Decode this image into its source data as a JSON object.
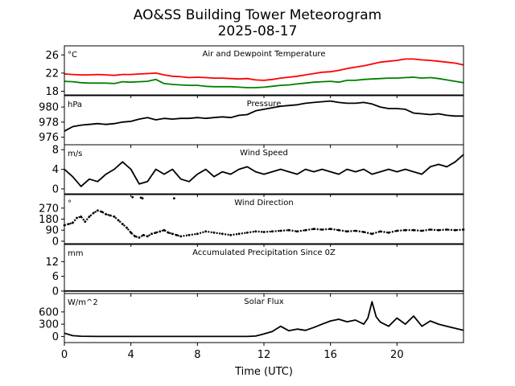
{
  "figure": {
    "title_line1": "AO&SS Building Tower Meteorogram",
    "title_line2": "2025-08-17",
    "xlabel": "Time (UTC)"
  },
  "chart_data": [
    {
      "type": "line",
      "title": "Air and Dewpoint Temperature",
      "unit": "°C",
      "ylim": [
        17.2,
        28
      ],
      "yticks": [
        18,
        22,
        26
      ],
      "series": [
        {
          "name": "Air Temperature",
          "color": "#ff0000",
          "x": [
            0,
            0.5,
            1,
            1.5,
            2,
            2.5,
            3,
            3.5,
            4,
            4.5,
            5,
            5.5,
            6,
            6.5,
            7,
            7.5,
            8,
            8.5,
            9,
            9.5,
            10,
            10.5,
            11,
            11.5,
            12,
            12.5,
            13,
            13.5,
            14,
            14.5,
            15,
            15.5,
            16,
            16.5,
            17,
            17.5,
            18,
            18.5,
            19,
            19.5,
            20,
            20.5,
            21,
            21.5,
            22,
            22.5,
            23,
            23.5,
            24
          ],
          "y": [
            21.8,
            21.7,
            21.6,
            21.6,
            21.7,
            21.6,
            21.5,
            21.7,
            21.7,
            21.8,
            21.9,
            22.0,
            21.6,
            21.3,
            21.2,
            21.0,
            21.1,
            21.0,
            20.9,
            20.9,
            20.8,
            20.7,
            20.8,
            20.5,
            20.4,
            20.6,
            20.9,
            21.1,
            21.3,
            21.6,
            21.9,
            22.2,
            22.3,
            22.6,
            23.0,
            23.3,
            23.6,
            24.0,
            24.4,
            24.6,
            24.8,
            25.1,
            25.1,
            24.9,
            24.8,
            24.6,
            24.4,
            24.2,
            23.8
          ]
        },
        {
          "name": "Dewpoint Temperature",
          "color": "#008000",
          "x": [
            0,
            0.5,
            1,
            1.5,
            2,
            2.5,
            3,
            3.5,
            4,
            4.5,
            5,
            5.5,
            6,
            6.5,
            7,
            7.5,
            8,
            8.5,
            9,
            9.5,
            10,
            10.5,
            11,
            11.5,
            12,
            12.5,
            13,
            13.5,
            14,
            14.5,
            15,
            15.5,
            16,
            16.5,
            17,
            17.5,
            18,
            18.5,
            19,
            19.5,
            20,
            20.5,
            21,
            21.5,
            22,
            22.5,
            23,
            23.5,
            24
          ],
          "y": [
            20.2,
            20.1,
            19.9,
            19.8,
            19.8,
            19.8,
            19.7,
            20.1,
            20.0,
            20.1,
            20.2,
            20.6,
            19.7,
            19.5,
            19.4,
            19.3,
            19.3,
            19.1,
            19.0,
            19.0,
            19.0,
            18.9,
            18.8,
            18.8,
            18.9,
            19.1,
            19.3,
            19.4,
            19.6,
            19.8,
            20.0,
            20.1,
            20.2,
            20.0,
            20.4,
            20.4,
            20.6,
            20.7,
            20.8,
            20.9,
            20.9,
            21.0,
            21.1,
            20.9,
            21.0,
            20.8,
            20.5,
            20.2,
            19.9
          ]
        }
      ]
    },
    {
      "type": "line",
      "title": "Pressure",
      "unit": "hPa",
      "ylim": [
        975,
        981.5
      ],
      "yticks": [
        976,
        978,
        980
      ],
      "series": [
        {
          "name": "Pressure",
          "color": "#000000",
          "x": [
            0,
            0.5,
            1,
            1.5,
            2,
            2.5,
            3,
            3.5,
            4,
            4.5,
            5,
            5.5,
            6,
            6.5,
            7,
            7.5,
            8,
            8.5,
            9,
            9.5,
            10,
            10.5,
            11,
            11.5,
            12,
            12.5,
            13,
            13.5,
            14,
            14.5,
            15,
            15.5,
            16,
            16.5,
            17,
            17.5,
            18,
            18.5,
            19,
            19.5,
            20,
            20.5,
            21,
            21.5,
            22,
            22.5,
            23,
            23.5,
            24
          ],
          "y": [
            976.8,
            977.4,
            977.6,
            977.7,
            977.8,
            977.7,
            977.8,
            978.0,
            978.1,
            978.4,
            978.6,
            978.3,
            978.5,
            978.4,
            978.5,
            978.5,
            978.6,
            978.5,
            978.6,
            978.7,
            978.6,
            978.9,
            979.0,
            979.5,
            979.7,
            979.9,
            980.1,
            980.2,
            980.3,
            980.5,
            980.6,
            980.7,
            980.8,
            980.6,
            980.5,
            980.5,
            980.6,
            980.4,
            980.0,
            979.8,
            979.8,
            979.7,
            979.2,
            979.1,
            979.0,
            979.1,
            978.9,
            978.8,
            978.8
          ]
        }
      ]
    },
    {
      "type": "line",
      "title": "Wind Speed",
      "unit": "m/s",
      "ylim": [
        -1,
        9
      ],
      "yticks": [
        0,
        4,
        8
      ],
      "series": [
        {
          "name": "Wind Speed",
          "color": "#000000",
          "x": [
            0,
            0.5,
            1,
            1.5,
            2,
            2.5,
            3,
            3.5,
            4,
            4.5,
            5,
            5.5,
            6,
            6.5,
            7,
            7.5,
            8,
            8.5,
            9,
            9.5,
            10,
            10.5,
            11,
            11.5,
            12,
            12.5,
            13,
            13.5,
            14,
            14.5,
            15,
            15.5,
            16,
            16.5,
            17,
            17.5,
            18,
            18.5,
            19,
            19.5,
            20,
            20.5,
            21,
            21.5,
            22,
            22.5,
            23,
            23.5,
            24
          ],
          "y": [
            4.0,
            2.5,
            0.5,
            2.0,
            1.5,
            3.0,
            4.0,
            5.5,
            4.0,
            1.0,
            1.5,
            4.0,
            3.0,
            4.0,
            2.0,
            1.5,
            3.0,
            4.0,
            2.5,
            3.5,
            3.0,
            4.0,
            4.5,
            3.5,
            3.0,
            3.5,
            4.0,
            3.5,
            3.0,
            4.0,
            3.5,
            4.0,
            3.5,
            3.0,
            4.0,
            3.5,
            4.0,
            3.0,
            3.5,
            4.0,
            3.5,
            4.0,
            3.5,
            3.0,
            4.5,
            5.0,
            4.5,
            5.5,
            7.0
          ]
        }
      ]
    },
    {
      "type": "scatter",
      "title": "Wind Direction",
      "unit": "°",
      "ylim": [
        -20,
        380
      ],
      "yticks": [
        0,
        90,
        180,
        270
      ],
      "series": [
        {
          "name": "Wind Direction",
          "color": "#000000",
          "x": [
            0,
            0.25,
            0.5,
            0.75,
            1,
            1.25,
            1.5,
            1.75,
            2,
            2.25,
            2.5,
            2.75,
            3,
            3.25,
            3.5,
            3.75,
            4,
            4.25,
            4.5,
            4.75,
            5,
            5.25,
            5.5,
            5.75,
            6,
            6.25,
            6.5,
            6.75,
            7,
            7.5,
            8,
            8.5,
            9,
            9.5,
            10,
            10.5,
            11,
            11.5,
            12,
            12.5,
            13,
            13.5,
            14,
            14.5,
            15,
            15.5,
            16,
            16.5,
            17,
            17.5,
            18,
            18.5,
            19,
            19.5,
            20,
            20.5,
            21,
            21.5,
            22,
            22.5,
            23,
            23.5,
            24,
            4.1,
            4.6,
            4.7,
            6.6
          ],
          "y": [
            130,
            140,
            150,
            190,
            200,
            160,
            200,
            230,
            250,
            240,
            220,
            210,
            200,
            170,
            140,
            110,
            70,
            40,
            30,
            50,
            40,
            60,
            70,
            80,
            90,
            70,
            60,
            50,
            40,
            50,
            60,
            80,
            70,
            60,
            50,
            60,
            70,
            80,
            75,
            80,
            85,
            90,
            80,
            90,
            100,
            95,
            100,
            90,
            80,
            85,
            75,
            60,
            80,
            70,
            85,
            90,
            90,
            85,
            95,
            90,
            95,
            90,
            95,
            360,
            355,
            350,
            350
          ]
        }
      ]
    },
    {
      "type": "line",
      "title": "Accumulated Precipitation Since 0Z",
      "unit": "mm",
      "ylim": [
        -1,
        19
      ],
      "yticks": [
        0,
        6,
        12
      ],
      "series": [
        {
          "name": "Accumulated Precipitation",
          "color": "#000000",
          "x": [
            0,
            24
          ],
          "y": [
            0,
            0
          ]
        }
      ]
    },
    {
      "type": "line",
      "title": "Solar Flux",
      "unit": "W/m^2",
      "ylim": [
        -150,
        1050
      ],
      "yticks": [
        0,
        300,
        600
      ],
      "series": [
        {
          "name": "Solar Flux",
          "color": "#000000",
          "x": [
            0,
            0.5,
            1,
            2,
            3,
            4,
            5,
            6,
            7,
            8,
            9,
            10,
            11,
            11.5,
            12,
            12.5,
            13,
            13.5,
            14,
            14.5,
            15,
            15.5,
            16,
            16.5,
            17,
            17.5,
            18,
            18.25,
            18.5,
            18.75,
            19,
            19.5,
            20,
            20.5,
            21,
            21.5,
            22,
            22.5,
            23,
            23.5,
            24
          ],
          "y": [
            80,
            20,
            5,
            0,
            0,
            0,
            0,
            0,
            0,
            0,
            0,
            0,
            0,
            10,
            60,
            120,
            250,
            140,
            180,
            150,
            220,
            300,
            380,
            420,
            360,
            400,
            300,
            450,
            850,
            480,
            350,
            250,
            450,
            300,
            500,
            250,
            380,
            300,
            250,
            200,
            150
          ]
        }
      ]
    }
  ],
  "xaxis": {
    "xlim": [
      0,
      24
    ],
    "ticks": [
      0,
      4,
      8,
      12,
      16,
      20
    ]
  }
}
